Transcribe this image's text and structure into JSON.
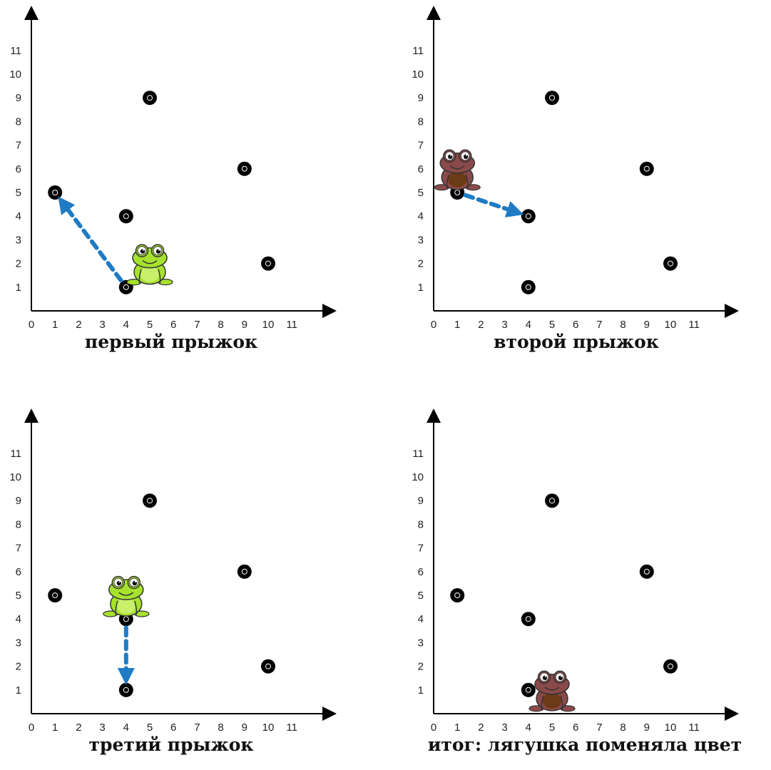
{
  "x_ticks": [
    "0",
    "1",
    "2",
    "3",
    "4",
    "5",
    "6",
    "7",
    "8",
    "9",
    "10",
    "11"
  ],
  "y_ticks": [
    "1",
    "2",
    "3",
    "4",
    "5",
    "6",
    "7",
    "8",
    "9",
    "10",
    "11"
  ],
  "panels": [
    {
      "caption": "первый прыжок",
      "points": [
        [
          1,
          5
        ],
        [
          4,
          4
        ],
        [
          5,
          9
        ],
        [
          9,
          6
        ],
        [
          10,
          2
        ],
        [
          4,
          1
        ]
      ],
      "arrow": {
        "from": [
          4,
          1
        ],
        "to": [
          1,
          5
        ]
      },
      "frog": {
        "color": "green",
        "at": [
          5,
          2
        ]
      }
    },
    {
      "caption": "второй прыжок",
      "points": [
        [
          1,
          5
        ],
        [
          4,
          4
        ],
        [
          5,
          9
        ],
        [
          9,
          6
        ],
        [
          10,
          2
        ],
        [
          4,
          1
        ]
      ],
      "arrow": {
        "from": [
          1,
          5
        ],
        "to": [
          4,
          4
        ]
      },
      "frog": {
        "color": "brown",
        "at": [
          1,
          6
        ]
      }
    },
    {
      "caption": "третий прыжок",
      "points": [
        [
          1,
          5
        ],
        [
          4,
          4
        ],
        [
          5,
          9
        ],
        [
          9,
          6
        ],
        [
          10,
          2
        ],
        [
          4,
          1
        ]
      ],
      "arrow": {
        "from": [
          4,
          4
        ],
        "to": [
          4,
          1
        ]
      },
      "frog": {
        "color": "green",
        "at": [
          4,
          5
        ]
      }
    },
    {
      "caption": "итог: лягушка поменяла цвет",
      "points": [
        [
          1,
          5
        ],
        [
          4,
          4
        ],
        [
          5,
          9
        ],
        [
          9,
          6
        ],
        [
          10,
          2
        ],
        [
          4,
          1
        ]
      ],
      "arrow": null,
      "frog": {
        "color": "brown",
        "at": [
          5,
          1
        ]
      }
    }
  ],
  "colors": {
    "arrow": "#1f7bc4",
    "point": "#000000",
    "frog_green": "#a6e22e",
    "frog_brown": "#8b4a4a"
  }
}
